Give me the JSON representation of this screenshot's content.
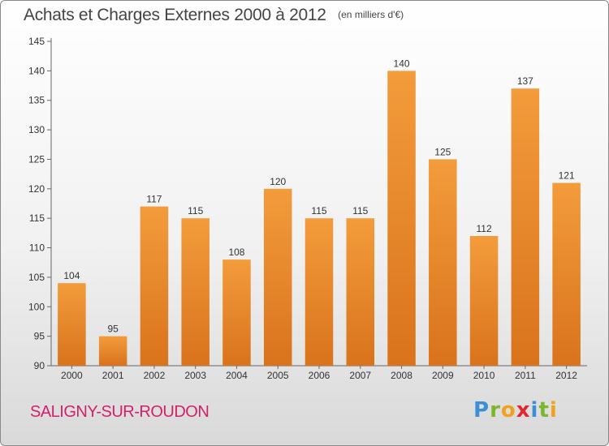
{
  "chart_data": {
    "type": "bar",
    "title": "Achats et Charges Externes 2000 à 2012",
    "unit_note": "(en milliers d'€)",
    "categories": [
      "2000",
      "2001",
      "2002",
      "2003",
      "2004",
      "2005",
      "2006",
      "2007",
      "2008",
      "2009",
      "2010",
      "2011",
      "2012"
    ],
    "values": [
      104,
      95,
      117,
      115,
      108,
      120,
      115,
      115,
      140,
      125,
      112,
      137,
      121
    ],
    "ylim": [
      90,
      145
    ],
    "yticks": [
      90,
      95,
      100,
      105,
      110,
      115,
      120,
      125,
      130,
      135,
      140,
      145
    ],
    "xlabel": "",
    "ylabel": "",
    "grid": false,
    "legend": "none",
    "bar_color": "#f39c3c",
    "bar_color_dark": "#d9731c"
  },
  "footer": {
    "commune": "SALIGNY-SUR-ROUDON",
    "commune_color": "#d2216b",
    "brand_letters": [
      {
        "char": "P",
        "color": "#3a8fd6"
      },
      {
        "char": "r",
        "color": "#7bb62b"
      },
      {
        "char": "o",
        "color": "#f0a21d"
      },
      {
        "char": "x",
        "color": "#e2282f"
      },
      {
        "char": "i",
        "color": "#3a8fd6"
      },
      {
        "char": "t",
        "color": "#7bb62b"
      },
      {
        "char": "i",
        "color": "#f0a21d"
      }
    ]
  }
}
